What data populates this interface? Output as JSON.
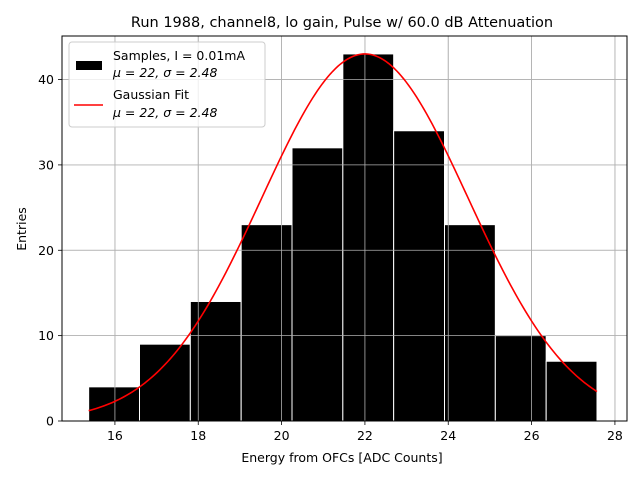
{
  "chart_data": {
    "type": "bar",
    "title": "Run 1988, channel8, lo gain, Pulse w/ 60.0 dB Attenuation",
    "xlabel": "Energy from OFCs [ADC Counts]",
    "ylabel": "Entries",
    "xlim": [
      14.73,
      28.29
    ],
    "ylim": [
      0,
      45.1
    ],
    "xticks": [
      16,
      18,
      20,
      22,
      24,
      26,
      28
    ],
    "yticks": [
      0,
      10,
      20,
      30,
      40
    ],
    "grid": true,
    "legend_position": "top-left",
    "bin_edges": [
      15.37,
      16.59,
      17.81,
      19.03,
      20.25,
      21.47,
      22.69,
      23.91,
      25.13,
      26.35,
      27.57
    ],
    "series": [
      {
        "name": "Samples, I = 0.01mA",
        "name_line2": "μ = 22, σ = 2.48",
        "kind": "histogram",
        "values": [
          4,
          9,
          14,
          23,
          32,
          43,
          34,
          23,
          10,
          7
        ],
        "color": "#000000",
        "edgecolor": "#ffffff"
      },
      {
        "name": "Gaussian Fit",
        "name_line2": "μ = 22, σ = 2.48",
        "kind": "line",
        "amplitude": 43,
        "mean": 22,
        "sigma": 2.48,
        "x_range": [
          15.37,
          27.57
        ],
        "color": "#ff0000"
      }
    ]
  }
}
